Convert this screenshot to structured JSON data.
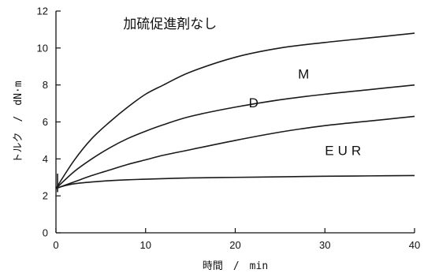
{
  "chart_data": {
    "type": "line",
    "xlabel": "時間　/　min",
    "ylabel": "トルク　/　dN·m",
    "xlim": [
      0,
      40
    ],
    "ylim": [
      0,
      12
    ],
    "x_ticks": [
      0,
      10,
      20,
      30,
      40
    ],
    "y_ticks": [
      0,
      2,
      4,
      6,
      8,
      10,
      12
    ],
    "x_tick_labels": [
      "0",
      "10",
      "20",
      "30",
      "40"
    ],
    "y_tick_labels": [
      "0",
      "2",
      "4",
      "6",
      "8",
      "10",
      "12"
    ],
    "grid": false,
    "legend": "none",
    "series": [
      {
        "name": "加硫促進剤なし",
        "color": "#1a1a1a",
        "x": [
          0,
          2,
          4,
          6,
          8,
          10,
          12,
          15,
          20,
          25,
          30,
          35,
          40
        ],
        "y": [
          2.4,
          3.9,
          5.1,
          6.0,
          6.8,
          7.5,
          8.0,
          8.7,
          9.5,
          10.0,
          10.3,
          10.55,
          10.8
        ]
      },
      {
        "name": "M",
        "color": "#1a1a1a",
        "x": [
          0,
          2,
          4,
          6,
          8,
          10,
          12,
          15,
          20,
          25,
          30,
          35,
          40
        ],
        "y": [
          2.4,
          3.3,
          4.0,
          4.6,
          5.1,
          5.5,
          5.85,
          6.3,
          6.8,
          7.2,
          7.5,
          7.75,
          8.0
        ]
      },
      {
        "name": "D",
        "color": "#1a1a1a",
        "x": [
          0,
          2,
          4,
          6,
          8,
          10,
          12,
          15,
          20,
          25,
          30,
          35,
          40
        ],
        "y": [
          2.4,
          2.75,
          3.1,
          3.4,
          3.7,
          3.95,
          4.2,
          4.5,
          5.0,
          5.45,
          5.8,
          6.05,
          6.3
        ]
      },
      {
        "name": "EUR",
        "color": "#1a1a1a",
        "x": [
          0,
          1,
          2,
          4,
          6,
          8,
          10,
          15,
          20,
          25,
          30,
          35,
          40
        ],
        "y": [
          2.4,
          2.55,
          2.65,
          2.75,
          2.82,
          2.87,
          2.9,
          2.97,
          3.0,
          3.03,
          3.06,
          3.08,
          3.1
        ]
      }
    ],
    "annotations": [
      {
        "text": "加硫促進剤なし",
        "x": 7.5,
        "y": 11.05
      },
      {
        "text": "M",
        "x": 27.0,
        "y": 8.35
      },
      {
        "text": "D",
        "x": 21.5,
        "y": 6.8
      },
      {
        "text": "EUR",
        "x": 30.0,
        "y": 4.2
      }
    ]
  }
}
